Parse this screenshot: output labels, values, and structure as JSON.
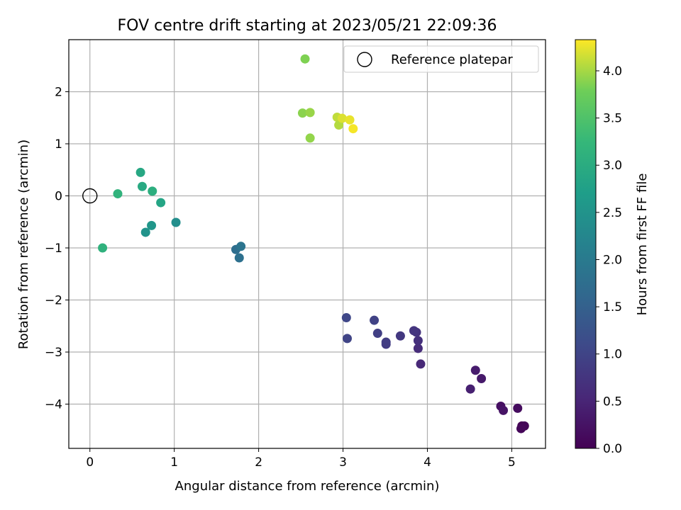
{
  "chart_data": {
    "type": "scatter",
    "title": "FOV centre drift starting at 2023/05/21 22:09:36",
    "xlabel": "Angular distance from reference (arcmin)",
    "ylabel": "Rotation from reference (arcmin)",
    "xlim": [
      -0.25,
      5.4
    ],
    "ylim": [
      -4.85,
      3.0
    ],
    "xticks": [
      0,
      1,
      2,
      3,
      4,
      5
    ],
    "yticks": [
      -4,
      -3,
      -2,
      -1,
      0,
      1,
      2
    ],
    "grid": true,
    "legend": {
      "position": "top-right",
      "entries": [
        {
          "label": "Reference platepar",
          "marker": "open-circle"
        }
      ]
    },
    "reference_point": {
      "x": 0,
      "y": 0,
      "label": "Reference platepar"
    },
    "colorbar": {
      "label": "Hours from first FF file",
      "colormap": "viridis",
      "range": [
        0,
        4.33
      ],
      "ticks": [
        0.0,
        0.5,
        1.0,
        1.5,
        2.0,
        2.5,
        3.0,
        3.5,
        4.0
      ],
      "tick_labels": [
        "0.0",
        "0.5",
        "1.0",
        "1.5",
        "2.0",
        "2.5",
        "3.0",
        "3.5",
        "4.0"
      ]
    },
    "points": [
      {
        "x": 5.12,
        "y": -4.42,
        "h": 0.0
      },
      {
        "x": 5.15,
        "y": -4.42,
        "h": 0.05
      },
      {
        "x": 5.11,
        "y": -4.47,
        "h": 0.08
      },
      {
        "x": 5.07,
        "y": -4.08,
        "h": 0.15
      },
      {
        "x": 4.87,
        "y": -4.04,
        "h": 0.2
      },
      {
        "x": 4.9,
        "y": -4.12,
        "h": 0.25
      },
      {
        "x": 4.64,
        "y": -3.51,
        "h": 0.33
      },
      {
        "x": 4.57,
        "y": -3.35,
        "h": 0.38
      },
      {
        "x": 4.51,
        "y": -3.71,
        "h": 0.43
      },
      {
        "x": 3.92,
        "y": -3.23,
        "h": 0.55
      },
      {
        "x": 3.89,
        "y": -2.93,
        "h": 0.62
      },
      {
        "x": 3.89,
        "y": -2.78,
        "h": 0.68
      },
      {
        "x": 3.87,
        "y": -2.62,
        "h": 0.72
      },
      {
        "x": 3.84,
        "y": -2.59,
        "h": 0.76
      },
      {
        "x": 3.68,
        "y": -2.69,
        "h": 0.8
      },
      {
        "x": 3.51,
        "y": -2.85,
        "h": 0.85
      },
      {
        "x": 3.51,
        "y": -2.81,
        "h": 0.88
      },
      {
        "x": 3.41,
        "y": -2.64,
        "h": 0.92
      },
      {
        "x": 3.37,
        "y": -2.39,
        "h": 0.96
      },
      {
        "x": 3.05,
        "y": -2.74,
        "h": 1.0
      },
      {
        "x": 3.04,
        "y": -2.34,
        "h": 1.05
      },
      {
        "x": 1.73,
        "y": -1.03,
        "h": 1.75
      },
      {
        "x": 1.77,
        "y": -1.19,
        "h": 1.8
      },
      {
        "x": 1.79,
        "y": -0.97,
        "h": 1.87
      },
      {
        "x": 1.02,
        "y": -0.51,
        "h": 2.4
      },
      {
        "x": 0.66,
        "y": -0.7,
        "h": 2.5
      },
      {
        "x": 0.73,
        "y": -0.57,
        "h": 2.55
      },
      {
        "x": 0.84,
        "y": -0.13,
        "h": 2.85
      },
      {
        "x": 0.6,
        "y": 0.45,
        "h": 2.9
      },
      {
        "x": 0.62,
        "y": 0.18,
        "h": 2.95
      },
      {
        "x": 0.74,
        "y": 0.09,
        "h": 3.05
      },
      {
        "x": 0.15,
        "y": -1.0,
        "h": 3.12
      },
      {
        "x": 0.33,
        "y": 0.04,
        "h": 3.15
      },
      {
        "x": 2.55,
        "y": 2.63,
        "h": 3.85
      },
      {
        "x": 2.52,
        "y": 1.59,
        "h": 3.9
      },
      {
        "x": 2.61,
        "y": 1.6,
        "h": 3.95
      },
      {
        "x": 2.61,
        "y": 1.11,
        "h": 3.93
      },
      {
        "x": 2.93,
        "y": 1.51,
        "h": 4.1
      },
      {
        "x": 2.95,
        "y": 1.36,
        "h": 4.05
      },
      {
        "x": 2.99,
        "y": 1.49,
        "h": 4.2
      },
      {
        "x": 3.08,
        "y": 1.46,
        "h": 4.25
      },
      {
        "x": 3.12,
        "y": 1.29,
        "h": 4.3
      }
    ]
  }
}
